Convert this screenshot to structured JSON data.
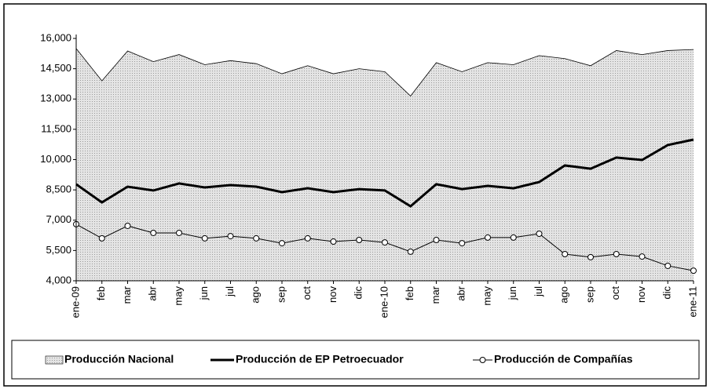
{
  "chart_data": {
    "type": "line",
    "categories": [
      "ene-09",
      "feb",
      "mar",
      "abr",
      "may",
      "jun",
      "jul",
      "ago",
      "sep",
      "oct",
      "nov",
      "dic",
      "ene-10",
      "feb",
      "mar",
      "abr",
      "may",
      "jun",
      "jul",
      "ago",
      "sep",
      "oct",
      "nov",
      "dic",
      "ene-11"
    ],
    "series": [
      {
        "name": "Producción Nacional",
        "color": "#d4d4d4",
        "style": "area",
        "values": [
          15500,
          13900,
          15380,
          14850,
          15200,
          14700,
          14900,
          14750,
          14250,
          14650,
          14250,
          14500,
          14350,
          13150,
          14800,
          14350,
          14800,
          14700,
          15150,
          15000,
          14650,
          15400,
          15200,
          15400,
          15450
        ]
      },
      {
        "name": "Producción de EP Petroecuador",
        "color": "#000000",
        "style": "line",
        "values": [
          8780,
          7880,
          8660,
          8470,
          8820,
          8620,
          8740,
          8660,
          8390,
          8580,
          8390,
          8540,
          8470,
          7690,
          8780,
          8540,
          8700,
          8580,
          8890,
          9710,
          9550,
          10100,
          9980,
          10720,
          10990
        ]
      },
      {
        "name": "Producción de Compañías",
        "color": "#000000",
        "style": "marker",
        "values": [
          6800,
          6100,
          6720,
          6370,
          6370,
          6100,
          6210,
          6100,
          5860,
          6100,
          5940,
          6020,
          5900,
          5440,
          6020,
          5860,
          6140,
          6140,
          6330,
          5320,
          5170,
          5320,
          5200,
          4740,
          4500
        ]
      }
    ],
    "ylim": [
      4000,
      16000
    ],
    "yticks": [
      {
        "value": 4000,
        "label": "4,000"
      },
      {
        "value": 5500,
        "label": "5,500"
      },
      {
        "value": 7000,
        "label": "7,000"
      },
      {
        "value": 8500,
        "label": "8,500"
      },
      {
        "value": 10000,
        "label": "10,000"
      },
      {
        "value": 11500,
        "label": "11,500"
      },
      {
        "value": 13000,
        "label": "13,000"
      },
      {
        "value": 14500,
        "label": "14,500"
      },
      {
        "value": 16000,
        "label": "16,000"
      }
    ],
    "legend": "bottom"
  }
}
